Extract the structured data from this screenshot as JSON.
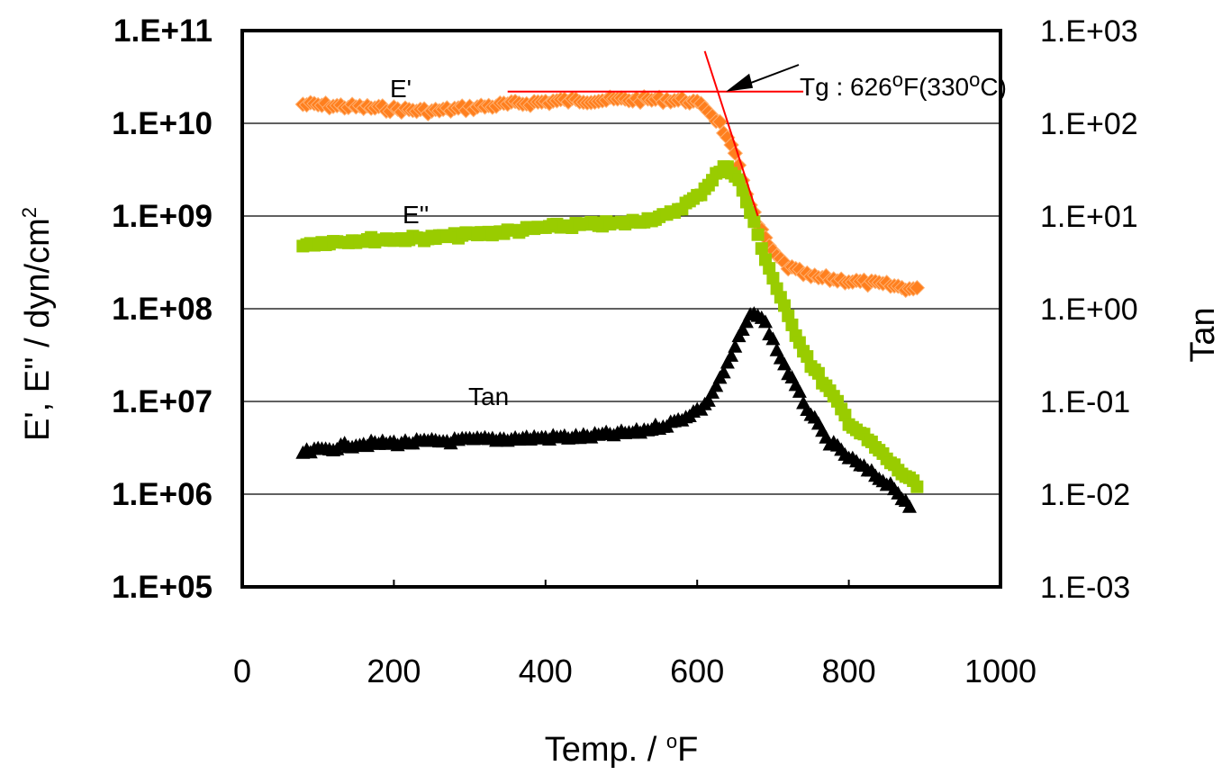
{
  "chart_data": {
    "type": "scatter",
    "xlabel": "Temp.  /  °F",
    "xlabel_main": "Temp.  /  ",
    "xlabel_sup": "o",
    "xlabel_unit": "F",
    "ylabel_left": "E', E''  /  dyn/cm²",
    "ylabel_left_main": "E', E''  /  dyn/cm",
    "ylabel_left_sup": "2",
    "ylabel_right": "Tan",
    "xlim": [
      0,
      1000
    ],
    "xticks": [
      0,
      200,
      400,
      600,
      800,
      1000
    ],
    "xtick_labels": [
      "0",
      "200",
      "400",
      "600",
      "800",
      "1000"
    ],
    "ylim_left": [
      100000.0,
      100000000000.0
    ],
    "yscale_left": "log",
    "ytick_labels_left": [
      "1.E+11",
      "1.E+10",
      "1.E+09",
      "1.E+08",
      "1.E+07",
      "1.E+06",
      "1.E+05"
    ],
    "ylim_right": [
      0.001,
      1000
    ],
    "yscale_right": "log",
    "ytick_labels_right": [
      "1.E+03",
      "1.E+02",
      "1.E+01",
      "1.E+00",
      "1.E-01",
      "1.E-02",
      "1.E-03"
    ],
    "grid": "horizontal",
    "series": [
      {
        "name": "E'",
        "axis": "left",
        "marker": "diamond",
        "color": "#FF7F1E",
        "points": [
          [
            80,
            16000000000.0
          ],
          [
            150,
            15000000000.0
          ],
          [
            250,
            13500000000.0
          ],
          [
            350,
            16000000000.0
          ],
          [
            420,
            17500000000.0
          ],
          [
            500,
            18000000000.0
          ],
          [
            560,
            18000000000.0
          ],
          [
            590,
            17500000000.0
          ],
          [
            610,
            15000000000.0
          ],
          [
            630,
            10000000000.0
          ],
          [
            650,
            4500000000.0
          ],
          [
            665,
            1800000000.0
          ],
          [
            680,
            800000000.0
          ],
          [
            700,
            400000000.0
          ],
          [
            720,
            280000000.0
          ],
          [
            750,
            220000000.0
          ],
          [
            800,
            200000000.0
          ],
          [
            850,
            180000000.0
          ],
          [
            890,
            160000000.0
          ]
        ]
      },
      {
        "name": "E''",
        "axis": "left",
        "marker": "square",
        "color": "#99CC00",
        "points": [
          [
            80,
            500000000.0
          ],
          [
            150,
            550000000.0
          ],
          [
            250,
            580000000.0
          ],
          [
            350,
            680000000.0
          ],
          [
            420,
            780000000.0
          ],
          [
            500,
            830000000.0
          ],
          [
            560,
            1000000000.0
          ],
          [
            600,
            1600000000.0
          ],
          [
            625,
            2800000000.0
          ],
          [
            640,
            3500000000.0
          ],
          [
            655,
            2400000000.0
          ],
          [
            670,
            1100000000.0
          ],
          [
            690,
            350000000.0
          ],
          [
            720,
            80000000.0
          ],
          [
            750,
            25000000.0
          ],
          [
            780,
            11000000.0
          ],
          [
            800,
            6000000.0
          ],
          [
            830,
            3500000.0
          ],
          [
            860,
            2000000.0
          ],
          [
            890,
            1200000.0
          ]
        ]
      },
      {
        "name": "Tan",
        "axis": "right",
        "marker": "triangle",
        "color": "#000000",
        "points": [
          [
            80,
            0.028
          ],
          [
            150,
            0.035
          ],
          [
            250,
            0.037
          ],
          [
            350,
            0.04
          ],
          [
            450,
            0.042
          ],
          [
            520,
            0.047
          ],
          [
            570,
            0.06
          ],
          [
            610,
            0.09
          ],
          [
            640,
            0.25
          ],
          [
            660,
            0.6
          ],
          [
            675,
            0.95
          ],
          [
            690,
            0.7
          ],
          [
            710,
            0.3
          ],
          [
            740,
            0.1
          ],
          [
            770,
            0.04
          ],
          [
            800,
            0.025
          ],
          [
            830,
            0.017
          ],
          [
            860,
            0.012
          ],
          [
            880,
            0.007
          ]
        ]
      }
    ],
    "annotations": {
      "e_prime_label": "E'",
      "e_double_prime_label": "E''",
      "tan_label": "Tan",
      "tg_label_prefix": "Tg : 626",
      "tg_sup_1": "o",
      "tg_label_mid": "F(330",
      "tg_sup_2": "o",
      "tg_label_suffix": "C)",
      "tg_value_f": 626,
      "tg_value_c": 330,
      "tangent_color": "#FF0000",
      "tangent_plateau": [
        [
          350,
          22000000000.0
        ],
        [
          740,
          22000000000.0
        ]
      ],
      "tangent_slope": [
        [
          610,
          60000000000.0
        ],
        [
          680,
          1000000000.0
        ]
      ]
    }
  }
}
